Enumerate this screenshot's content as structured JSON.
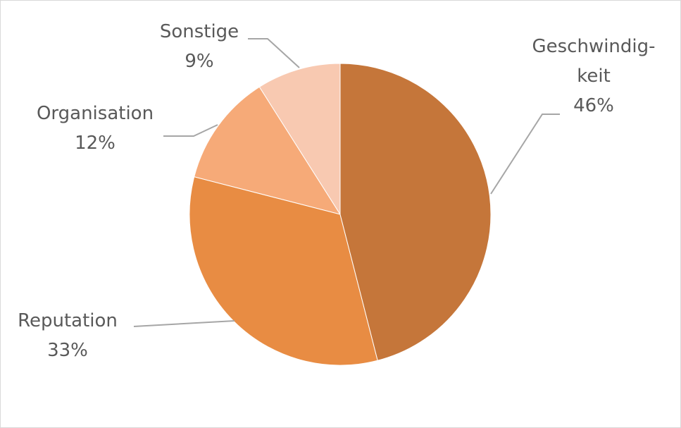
{
  "chart_data": {
    "type": "pie",
    "categories": [
      "Geschwindig-\nkeit",
      "Reputation",
      "Organisation",
      "Sonstige"
    ],
    "values": [
      46,
      33,
      12,
      9
    ],
    "value_labels": [
      "46%",
      "33%",
      "12%",
      "9%"
    ],
    "colors": [
      "#c5763a",
      "#e88c43",
      "#f6aa78",
      "#f8c9b1"
    ]
  }
}
